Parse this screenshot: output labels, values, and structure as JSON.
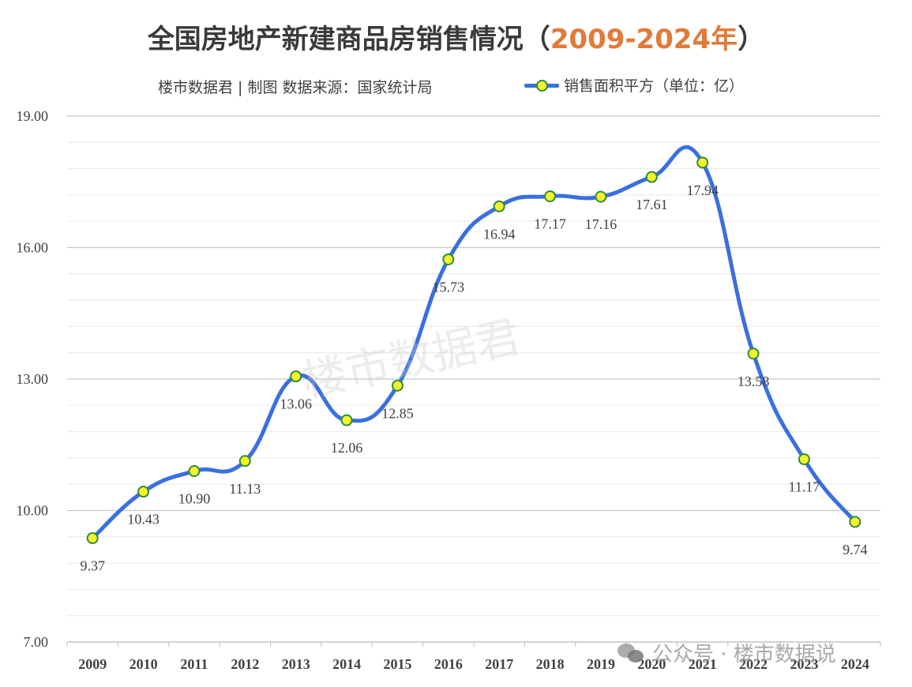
{
  "header": {
    "title_main": "全国房地产新建商品房销售情况（",
    "title_highlight": "2009-2024年",
    "title_end": "）",
    "source": "楼市数据君 | 制图  数据来源：国家统计局",
    "legend_label": "销售面积平方（单位：亿）"
  },
  "watermark": "楼市数据君",
  "footer": {
    "wechat_text": "公众号 · 楼市数据说"
  },
  "colors": {
    "line": "#3b6fe0",
    "marker_fill": "#f4f42a",
    "marker_stroke": "#2f8c3a",
    "title_highlight": "#e07b39"
  },
  "chart_data": {
    "type": "line",
    "title": "全国房地产新建商品房销售情况（2009-2024年）",
    "categories": [
      "2009",
      "2010",
      "2011",
      "2012",
      "2013",
      "2014",
      "2015",
      "2016",
      "2017",
      "2018",
      "2019",
      "2020",
      "2021",
      "2022",
      "2023",
      "2024"
    ],
    "series": [
      {
        "name": "销售面积平方（单位：亿）",
        "values": [
          9.37,
          10.43,
          10.9,
          11.13,
          13.06,
          12.06,
          12.85,
          15.73,
          16.94,
          17.17,
          17.16,
          17.61,
          17.94,
          13.58,
          11.17,
          9.74
        ],
        "labels": [
          "9.37",
          "10.43",
          "10.90",
          "11.13",
          "13.06",
          "12.06",
          "12.85",
          "15.73",
          "16.94",
          "17.17",
          "17.16",
          "17.61",
          "17.94",
          "13.58",
          "11.17",
          "9.74"
        ]
      }
    ],
    "ylim": [
      7,
      19
    ],
    "yticks": [
      "7.00",
      "10.00",
      "13.00",
      "16.00",
      "19.00"
    ],
    "grid": true,
    "legend_position": "top"
  }
}
